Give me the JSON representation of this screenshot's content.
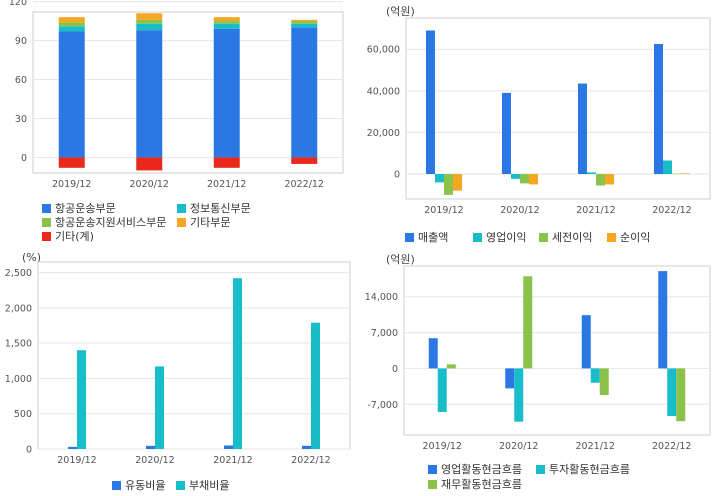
{
  "chart_data": [
    {
      "id": "p1",
      "type": "bar",
      "stacked": true,
      "unit": "",
      "categories": [
        "2019/12",
        "2020/12",
        "2021/12",
        "2022/12"
      ],
      "ylim": [
        -12,
        112
      ],
      "yticks": [
        0,
        30,
        60,
        90,
        120
      ],
      "ytick_labels": [
        "0",
        "30",
        "60",
        "90",
        "120"
      ],
      "series": [
        {
          "name": "항공운송부문",
          "color": "#2b78e4",
          "values": [
            97,
            98,
            99,
            100
          ]
        },
        {
          "name": "정보통신부문",
          "color": "#19bdc9",
          "values": [
            4,
            5,
            4,
            3
          ]
        },
        {
          "name": "항공운송지원서비스부문",
          "color": "#8bc34a",
          "values": [
            3,
            3,
            2,
            2
          ]
        },
        {
          "name": "기타부문",
          "color": "#f5a623",
          "values": [
            4,
            5,
            3,
            1
          ]
        },
        {
          "name": "기타(계)",
          "color": "#e8291c",
          "values": [
            -8,
            -10,
            -8,
            -5
          ]
        }
      ],
      "grid": true
    },
    {
      "id": "p2",
      "type": "bar",
      "unit": "(억원)",
      "categories": [
        "2019/12",
        "2020/12",
        "2021/12",
        "2022/12"
      ],
      "ylim": [
        -12000,
        75000
      ],
      "yticks": [
        0,
        20000,
        40000,
        60000
      ],
      "ytick_labels": [
        "0",
        "20,000",
        "40,000",
        "60,000"
      ],
      "series": [
        {
          "name": "매출액",
          "color": "#2b78e4",
          "values": [
            69000,
            39000,
            43500,
            62500
          ]
        },
        {
          "name": "영업이익",
          "color": "#19bdc9",
          "values": [
            -4000,
            -2300,
            800,
            6500
          ]
        },
        {
          "name": "세전이익",
          "color": "#8bc34a",
          "values": [
            -10000,
            -4500,
            -5500,
            200
          ]
        },
        {
          "name": "순이익",
          "color": "#f5a623",
          "values": [
            -8000,
            -5000,
            -5000,
            300
          ]
        }
      ],
      "grid": true
    },
    {
      "id": "p3",
      "type": "bar",
      "unit": "(%)",
      "categories": [
        "2019/12",
        "2020/12",
        "2021/12",
        "2022/12"
      ],
      "ylim": [
        0,
        2650
      ],
      "yticks": [
        0,
        500,
        1000,
        1500,
        2000,
        2500
      ],
      "ytick_labels": [
        "0",
        "500",
        "1,000",
        "1,500",
        "2,000",
        "2,500"
      ],
      "series": [
        {
          "name": "유동비율",
          "color": "#2b78e4",
          "values": [
            30,
            45,
            50,
            45
          ]
        },
        {
          "name": "부채비율",
          "color": "#19bdc9",
          "values": [
            1400,
            1170,
            2420,
            1790
          ]
        }
      ],
      "grid": true
    },
    {
      "id": "p4",
      "type": "bar",
      "unit": "(억원)",
      "categories": [
        "2019/12",
        "2020/12",
        "2021/12",
        "2022/12"
      ],
      "ylim": [
        -13000,
        20000
      ],
      "yticks": [
        -7000,
        0,
        7000,
        14000
      ],
      "ytick_labels": [
        "-7,000",
        "0",
        "7,000",
        "14,000"
      ],
      "series": [
        {
          "name": "영업활동현금흐름",
          "color": "#2b78e4",
          "values": [
            5900,
            -3900,
            10400,
            19000
          ]
        },
        {
          "name": "투자활동현금흐름",
          "color": "#19bdc9",
          "values": [
            -8500,
            -10400,
            -2800,
            -9300
          ]
        },
        {
          "name": "재무활동현금흐름",
          "color": "#8bc34a",
          "values": [
            800,
            18000,
            -5200,
            -10300
          ]
        }
      ],
      "grid": true
    }
  ]
}
